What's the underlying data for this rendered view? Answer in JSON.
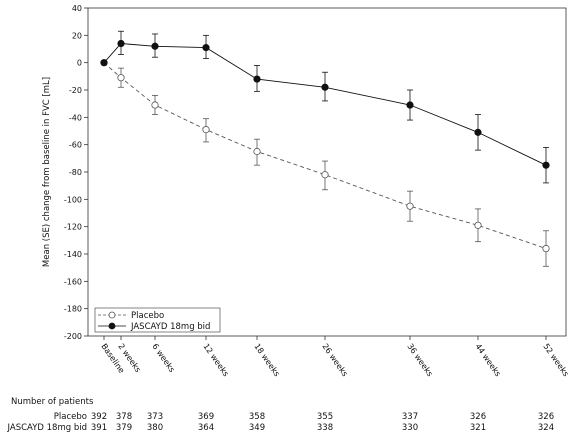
{
  "chart_data": {
    "type": "line",
    "title": "",
    "xlabel": "",
    "ylabel": "Mean (SE) change from baseline in FVC [mL]",
    "ylim": [
      -200,
      40
    ],
    "yticks": [
      40,
      20,
      0,
      -20,
      -40,
      -60,
      -80,
      -100,
      -120,
      -140,
      -160,
      -180,
      -200
    ],
    "grid": false,
    "legend_position": "bottom-left",
    "x": [
      0,
      2,
      6,
      12,
      18,
      26,
      36,
      44,
      52
    ],
    "categories": [
      "Baseline",
      "2 weeks",
      "6 weeks",
      "12 weeks",
      "18 weeks",
      "26 weeks",
      "36 weeks",
      "44 weeks",
      "52 weeks"
    ],
    "series": [
      {
        "name": "Placebo",
        "style": "dashed",
        "marker": "open-circle",
        "color": "#555555",
        "values": [
          0,
          -11,
          -31,
          -49,
          -65,
          -82,
          -105,
          -119,
          -136
        ],
        "se_lower": [
          0,
          -18,
          -38,
          -58,
          -75,
          -93,
          -116,
          -131,
          -149
        ],
        "se_upper": [
          0,
          -4,
          -24,
          -41,
          -56,
          -72,
          -94,
          -107,
          -123
        ]
      },
      {
        "name": "JASCAYD 18mg bid",
        "style": "solid",
        "marker": "filled-circle",
        "color": "#111111",
        "values": [
          0,
          14,
          12,
          11,
          -12,
          -18,
          -31,
          -51,
          -75
        ],
        "se_lower": [
          0,
          6,
          4,
          3,
          -21,
          -28,
          -42,
          -64,
          -88
        ],
        "se_upper": [
          0,
          23,
          21,
          20,
          -2,
          -7,
          -20,
          -38,
          -62
        ]
      }
    ],
    "patients": {
      "title": "Number of patients",
      "rows": [
        {
          "name": "Placebo",
          "values": [
            "392",
            "378",
            "373",
            "369",
            "358",
            "355",
            "337",
            "326",
            "326"
          ]
        },
        {
          "name": "JASCAYD 18mg bid",
          "values": [
            "391",
            "379",
            "380",
            "364",
            "349",
            "338",
            "330",
            "321",
            "324"
          ]
        }
      ]
    }
  }
}
